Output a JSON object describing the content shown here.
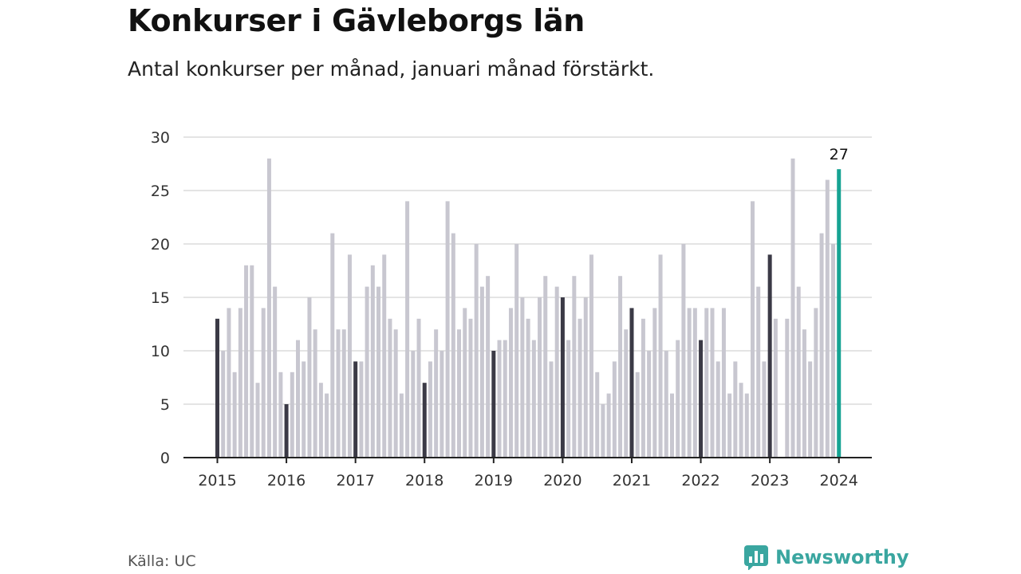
{
  "header": {
    "title": "Konkurser i Gävleborgs län",
    "subtitle": "Antal konkurser per månad, januari månad förstärkt."
  },
  "footer": {
    "source": "Källa: UC",
    "brand": "Newsworthy",
    "brand_icon": "newsworthy-chart-logo-icon"
  },
  "colors": {
    "bar": "#c8c7d0",
    "january_bar": "#3b3a46",
    "latest_bar": "#16a393",
    "grid": "#dcdcdc",
    "axis": "#222222",
    "brand": "#3aa6a0"
  },
  "chart_data": {
    "type": "bar",
    "x_tick_labels": [
      "2015",
      "2016",
      "2017",
      "2018",
      "2019",
      "2020",
      "2021",
      "2022",
      "2023",
      "2024"
    ],
    "y_ticks": [
      0,
      5,
      10,
      15,
      20,
      25,
      30
    ],
    "ylim": [
      0,
      30
    ],
    "grid": true,
    "highlight": "january bars dark, latest month teal",
    "values": [
      13,
      10,
      14,
      8,
      14,
      18,
      18,
      7,
      14,
      28,
      16,
      8,
      5,
      8,
      11,
      9,
      15,
      12,
      7,
      6,
      21,
      12,
      12,
      19,
      9,
      9,
      16,
      18,
      16,
      19,
      13,
      12,
      6,
      24,
      10,
      13,
      7,
      9,
      12,
      10,
      24,
      21,
      12,
      14,
      13,
      20,
      16,
      17,
      10,
      11,
      11,
      14,
      20,
      15,
      13,
      11,
      15,
      17,
      9,
      16,
      15,
      11,
      17,
      13,
      15,
      19,
      8,
      5,
      6,
      9,
      17,
      12,
      14,
      8,
      13,
      10,
      14,
      19,
      10,
      6,
      11,
      20,
      14,
      14,
      11,
      14,
      14,
      9,
      14,
      6,
      9,
      7,
      6,
      24,
      16,
      9,
      19,
      13,
      0,
      13,
      28,
      16,
      12,
      9,
      14,
      21,
      26,
      20,
      27
    ],
    "data_labels": [
      {
        "index": 108,
        "text": "27"
      }
    ]
  }
}
